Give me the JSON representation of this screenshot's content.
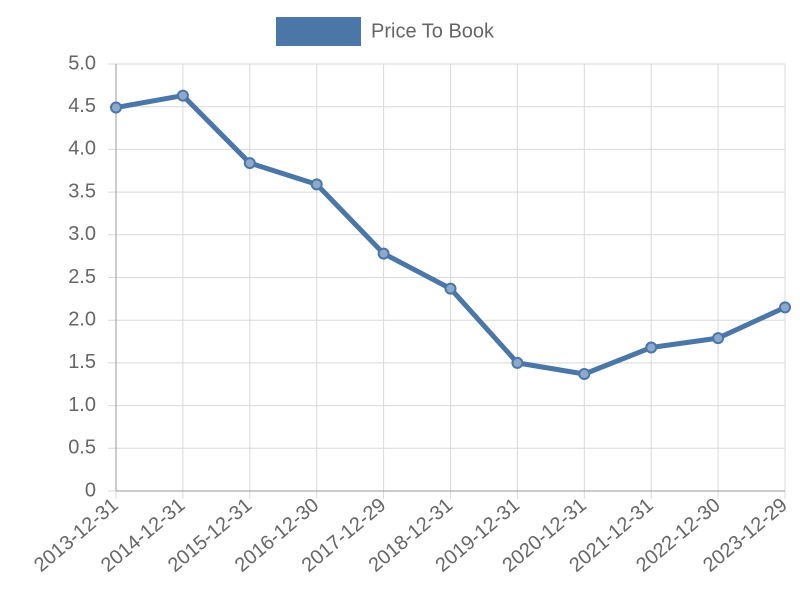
{
  "chart_data": {
    "type": "line",
    "categories": [
      "2013-12-31",
      "2014-12-31",
      "2015-12-31",
      "2016-12-30",
      "2017-12-29",
      "2018-12-31",
      "2019-12-31",
      "2020-12-31",
      "2021-12-31",
      "2022-12-30",
      "2023-12-29"
    ],
    "series": [
      {
        "name": "Price To Book",
        "color": "#4a76a8",
        "values": [
          4.49,
          4.63,
          3.84,
          3.59,
          2.78,
          2.37,
          1.5,
          1.37,
          1.68,
          1.79,
          2.15
        ]
      }
    ],
    "ylim": [
      0,
      5
    ],
    "yticks": [
      0,
      0.5,
      {
        "value": 1,
        "label": "1.0"
      },
      1.5,
      {
        "value": 2,
        "label": "2.0"
      },
      2.5,
      {
        "value": 3,
        "label": "3.0"
      },
      3.5,
      {
        "value": 4,
        "label": "4.0"
      },
      4.5,
      {
        "value": 5,
        "label": "5.0"
      }
    ],
    "grid": true,
    "legend": "top"
  }
}
